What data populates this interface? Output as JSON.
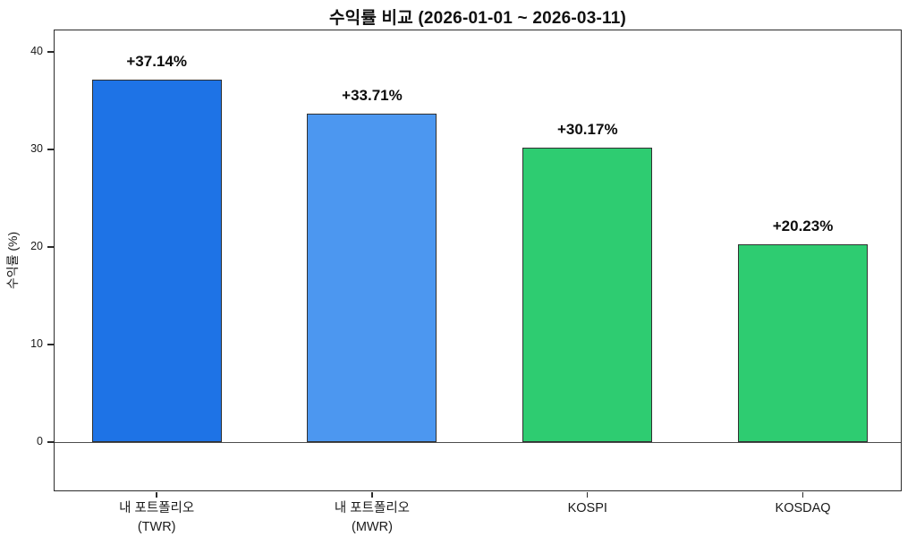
{
  "chart_data": {
    "type": "bar",
    "title": "수익률 비교 (2026-01-01 ~ 2026-03-11)",
    "xlabel": "",
    "ylabel": "수익률 (%)",
    "categories": [
      "내 포트폴리오\n(TWR)",
      "내 포트폴리오\n(MWR)",
      "KOSPI",
      "KOSDAQ"
    ],
    "values": [
      37.14,
      33.71,
      30.17,
      20.23
    ],
    "bar_labels": [
      "+37.14%",
      "+33.71%",
      "+30.17%",
      "+20.23%"
    ],
    "colors": [
      "#1e73e6",
      "#4c97f0",
      "#2ecc71",
      "#2ecc71"
    ],
    "yticks": [
      0,
      10,
      20,
      30,
      40
    ],
    "ytick_labels": [
      "0",
      "10",
      "20",
      "30",
      "40"
    ],
    "ylim": [
      -5,
      42.3
    ],
    "grid": false,
    "legend_position": "none",
    "zero_baseline": true
  }
}
